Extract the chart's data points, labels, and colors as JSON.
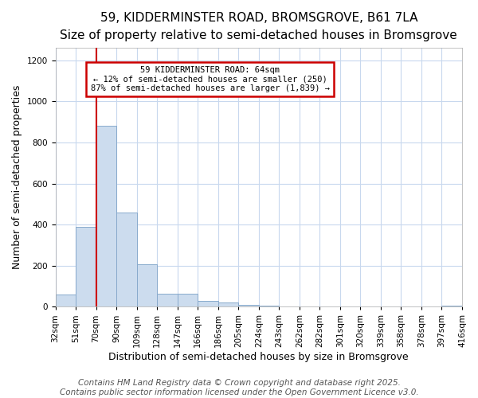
{
  "title": "59, KIDDERMINSTER ROAD, BROMSGROVE, B61 7LA",
  "subtitle": "Size of property relative to semi-detached houses in Bromsgrove",
  "xlabel": "Distribution of semi-detached houses by size in Bromsgrove",
  "ylabel": "Number of semi-detached properties",
  "footer1": "Contains HM Land Registry data © Crown copyright and database right 2025.",
  "footer2": "Contains public sector information licensed under the Open Government Licence v3.0.",
  "bin_labels": [
    "32sqm",
    "51sqm",
    "70sqm",
    "90sqm",
    "109sqm",
    "128sqm",
    "147sqm",
    "166sqm",
    "186sqm",
    "205sqm",
    "224sqm",
    "243sqm",
    "262sqm",
    "282sqm",
    "301sqm",
    "320sqm",
    "339sqm",
    "358sqm",
    "378sqm",
    "397sqm",
    "416sqm"
  ],
  "num_bins": 20,
  "bar_heights": [
    60,
    390,
    880,
    460,
    205,
    63,
    63,
    30,
    20,
    10,
    5,
    3,
    2,
    0,
    0,
    0,
    0,
    0,
    0,
    5
  ],
  "bar_color": "#ccdcee",
  "bar_edge_color": "#88aacc",
  "red_line_bin": 2,
  "annotation_title": "59 KIDDERMINSTER ROAD: 64sqm",
  "annotation_line2": "← 12% of semi-detached houses are smaller (250)",
  "annotation_line3": "87% of semi-detached houses are larger (1,839) →",
  "annotation_box_color": "#cc0000",
  "ylim": [
    0,
    1260
  ],
  "yticks": [
    0,
    200,
    400,
    600,
    800,
    1000,
    1200
  ],
  "background_color": "#ffffff",
  "grid_color": "#c8d8ee",
  "title_fontsize": 11,
  "subtitle_fontsize": 9.5,
  "axis_label_fontsize": 9,
  "tick_fontsize": 7.5,
  "footer_fontsize": 7.5
}
